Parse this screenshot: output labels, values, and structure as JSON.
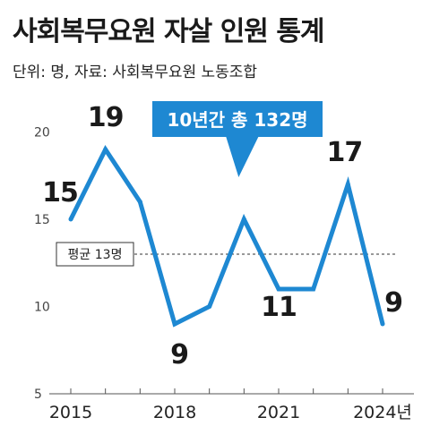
{
  "header": {
    "title": "사회복무요원 자살 인원 통계",
    "subtitle": "단위: 명, 자료: 사회복무요원 노동조합"
  },
  "chart_data": {
    "type": "line",
    "title": "사회복무요원 자살 인원 통계",
    "subtitle": "단위: 명, 자료: 사회복무요원 노동조합",
    "x": [
      2015,
      2016,
      2017,
      2018,
      2019,
      2020,
      2021,
      2022,
      2023,
      2024
    ],
    "values": [
      15,
      19,
      16,
      9,
      10,
      15,
      11,
      11,
      17,
      9
    ],
    "data_labels": [
      {
        "x": 2015,
        "text": "15"
      },
      {
        "x": 2016,
        "text": "19"
      },
      {
        "x": 2018,
        "text": "9"
      },
      {
        "x": 2021,
        "text": "11"
      },
      {
        "x": 2023,
        "text": "17"
      },
      {
        "x": 2024,
        "text": "9"
      }
    ],
    "x_tick_labels": [
      {
        "x": 2015,
        "text": "2015"
      },
      {
        "x": 2018,
        "text": "2018"
      },
      {
        "x": 2021,
        "text": "2021"
      },
      {
        "x": 2024,
        "text": "2024년"
      }
    ],
    "y_ticks": [
      5,
      10,
      15,
      20
    ],
    "ylim": [
      5,
      21
    ],
    "xlim": [
      2015,
      2024
    ],
    "average": {
      "value": 13,
      "label": "평균 13명"
    },
    "callout": {
      "text": "10년간 총 132명",
      "x": 2020
    },
    "colors": {
      "line": "#1e88d2",
      "callout_bg": "#1e88d2",
      "text": "#1a1a1a"
    },
    "grid": false,
    "legend": "none"
  }
}
